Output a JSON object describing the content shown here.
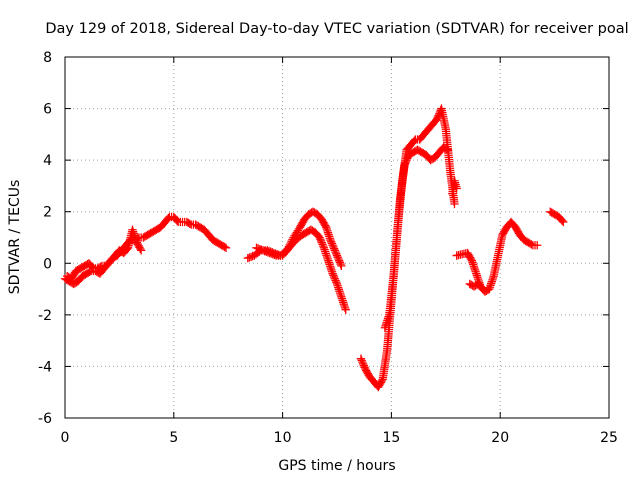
{
  "chart_data": {
    "type": "scatter",
    "title": "Day 129 of 2018, Sidereal Day-to-day VTEC variation (SDTVAR) for receiver poal",
    "xlabel": "GPS time / hours",
    "ylabel": "SDTVAR / TECUs",
    "xlim": [
      0,
      25
    ],
    "ylim": [
      -6,
      8
    ],
    "xticks": [
      0,
      5,
      10,
      15,
      20,
      25
    ],
    "xtick_labels": [
      "0",
      "5",
      "10",
      "15",
      "20",
      "25"
    ],
    "yticks": [
      -6,
      -4,
      -2,
      0,
      2,
      4,
      6,
      8
    ],
    "ytick_labels": [
      "-6",
      "-4",
      "-2",
      "0",
      "2",
      "4",
      "6",
      "8"
    ],
    "grid": true,
    "marker": "plus",
    "series": [
      {
        "name": "SDTVAR",
        "color": "#ff0000",
        "segments": [
          {
            "x": [
              0.0,
              0.2,
              0.4,
              0.6,
              0.8,
              1.0,
              1.2,
              1.4,
              1.6,
              1.8,
              2.0,
              2.2,
              2.4,
              2.6,
              2.8,
              3.0,
              3.2,
              3.4,
              3.6,
              3.8,
              4.0,
              4.2,
              4.4,
              4.6,
              4.8,
              5.0,
              5.2,
              5.4,
              5.6,
              5.8,
              6.0,
              6.2,
              6.4,
              6.6,
              6.8,
              7.0,
              7.2,
              7.4
            ],
            "y": [
              -0.6,
              -0.7,
              -0.8,
              -0.7,
              -0.5,
              -0.4,
              -0.3,
              -0.3,
              -0.4,
              -0.2,
              0.0,
              0.2,
              0.3,
              0.5,
              0.7,
              0.9,
              0.9,
              1.0,
              1.0,
              1.1,
              1.2,
              1.3,
              1.4,
              1.6,
              1.8,
              1.8,
              1.6,
              1.6,
              1.6,
              1.5,
              1.5,
              1.4,
              1.3,
              1.1,
              0.9,
              0.8,
              0.7,
              0.6
            ]
          },
          {
            "x": [
              0.1,
              0.3,
              0.5,
              0.7,
              0.9,
              1.1,
              1.3,
              1.5,
              1.7,
              1.9,
              2.1,
              2.3,
              2.5,
              2.7,
              2.9,
              3.1,
              3.3,
              3.5
            ],
            "y": [
              -0.5,
              -0.6,
              -0.3,
              -0.2,
              -0.1,
              0.0,
              -0.2,
              -0.2,
              -0.1,
              -0.1,
              0.1,
              0.3,
              0.5,
              0.4,
              0.6,
              1.3,
              0.8,
              0.5
            ]
          },
          {
            "x": [
              8.4,
              8.7,
              9.0,
              9.3,
              9.6,
              9.9,
              10.2,
              10.5,
              10.8,
              11.0,
              11.2,
              11.4,
              11.6,
              11.8,
              12.0,
              12.2,
              12.4,
              12.6,
              12.7
            ],
            "y": [
              0.2,
              0.3,
              0.5,
              0.5,
              0.4,
              0.3,
              0.5,
              1.0,
              1.4,
              1.7,
              1.9,
              2.0,
              1.9,
              1.7,
              1.4,
              0.9,
              0.5,
              0.1,
              -0.1
            ]
          },
          {
            "x": [
              8.8,
              9.1,
              9.4,
              9.7,
              10.0,
              10.3,
              10.6,
              10.9,
              11.1,
              11.3,
              11.5,
              11.7,
              11.9,
              12.1,
              12.3,
              12.5,
              12.7,
              12.9
            ],
            "y": [
              0.6,
              0.5,
              0.4,
              0.3,
              0.3,
              0.6,
              0.9,
              1.1,
              1.2,
              1.3,
              1.2,
              1.0,
              0.6,
              0.1,
              -0.4,
              -0.8,
              -1.3,
              -1.8
            ]
          },
          {
            "x": [
              13.6,
              13.8,
              14.0,
              14.2,
              14.4,
              14.6,
              14.8,
              15.0,
              15.2,
              15.4,
              15.6,
              15.8,
              16.0,
              16.2,
              16.4,
              16.6,
              16.8,
              17.0,
              17.2,
              17.4,
              17.6
            ],
            "y": [
              -3.7,
              -4.1,
              -4.4,
              -4.6,
              -4.8,
              -4.5,
              -3.4,
              -1.5,
              0.5,
              2.5,
              3.8,
              4.2,
              4.3,
              4.4,
              4.3,
              4.2,
              4.0,
              4.1,
              4.3,
              4.5,
              4.4
            ]
          },
          {
            "x": [
              14.7,
              14.9,
              15.1,
              15.3,
              15.5,
              15.7,
              15.9,
              16.1,
              16.3,
              16.5,
              16.7,
              16.9,
              17.1,
              17.3,
              17.5,
              17.7,
              17.9
            ],
            "y": [
              -2.5,
              -2.0,
              -0.5,
              1.5,
              3.2,
              4.4,
              4.6,
              4.8,
              4.8,
              5.0,
              5.2,
              5.4,
              5.6,
              6.0,
              5.2,
              3.6,
              2.3
            ]
          },
          {
            "x": [
              17.8,
              17.9,
              18.0
            ],
            "y": [
              2.7,
              3.2,
              2.9
            ]
          },
          {
            "x": [
              18.0,
              18.5,
              18.7,
              18.9,
              19.1,
              19.3,
              19.5,
              19.7,
              19.9,
              20.1,
              20.3,
              20.5,
              20.7,
              20.9,
              21.1,
              21.3,
              21.5,
              21.7
            ],
            "y": [
              0.3,
              0.4,
              0.1,
              -0.4,
              -0.9,
              -1.1,
              -1.0,
              -0.5,
              0.3,
              1.1,
              1.4,
              1.6,
              1.4,
              1.1,
              0.9,
              0.8,
              0.7,
              0.7
            ]
          },
          {
            "x": [
              18.6,
              18.8,
              19.0,
              19.2
            ],
            "y": [
              -0.8,
              -0.9,
              -0.8,
              -1.0
            ]
          },
          {
            "x": [
              22.3,
              22.5,
              22.7,
              22.9
            ],
            "y": [
              2.0,
              1.9,
              1.8,
              1.6
            ]
          }
        ]
      }
    ]
  }
}
